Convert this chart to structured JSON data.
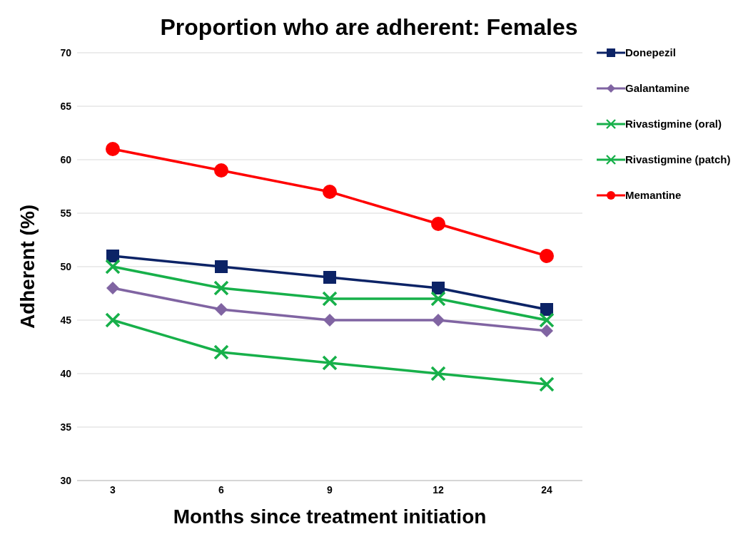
{
  "chart_data": {
    "type": "line",
    "title": "Proportion who are adherent: Females",
    "xlabel": "Months since treatment initiation",
    "ylabel": "Adherent (%)",
    "categories": [
      "3",
      "6",
      "9",
      "12",
      "24"
    ],
    "series": [
      {
        "name": "Donepezil",
        "color": "#0c2366",
        "marker": "square",
        "values": [
          51,
          50,
          49,
          48,
          46
        ]
      },
      {
        "name": "Galantamine",
        "color": "#8064a2",
        "marker": "diamond",
        "values": [
          48,
          46,
          45,
          45,
          44
        ]
      },
      {
        "name": "Rivastigmine (oral)",
        "color": "#17b04a",
        "marker": "cross",
        "values": [
          50,
          48,
          47,
          47,
          45
        ]
      },
      {
        "name": "Rivastigmine (patch)",
        "color": "#17b04a",
        "marker": "cross",
        "values": [
          45,
          42,
          41,
          40,
          39
        ]
      },
      {
        "name": "Memantine",
        "color": "#ff0000",
        "marker": "circle",
        "values": [
          61,
          59,
          57,
          54,
          51
        ]
      }
    ],
    "ylim": [
      30,
      70
    ],
    "yticks": [
      30,
      35,
      40,
      45,
      50,
      55,
      60,
      65,
      70
    ],
    "grid": "y",
    "legend": "top right",
    "line_style": "solid"
  }
}
